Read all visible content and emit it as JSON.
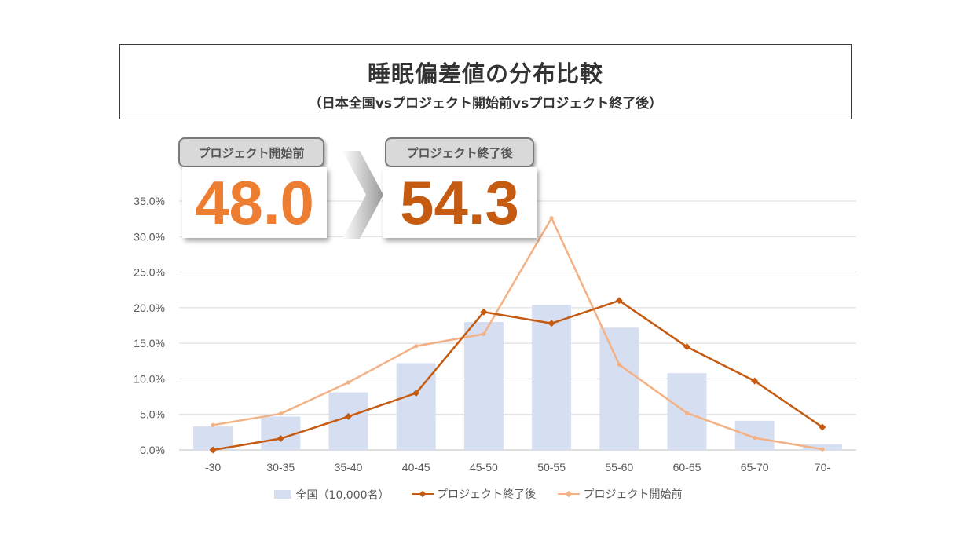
{
  "header": {
    "title": "睡眠偏差値の分布比較",
    "subtitle": "（日本全国vsプロジェクト開始前vsプロジェクト終了後）"
  },
  "badges": {
    "before": {
      "label": "プロジェクト開始前",
      "value": "48.0",
      "color": "#ed7d31"
    },
    "after": {
      "label": "プロジェクト終了後",
      "value": "54.3",
      "color": "#c55a11"
    }
  },
  "chart_data": {
    "type": "bar",
    "categories": [
      "-30",
      "30-35",
      "35-40",
      "40-45",
      "45-50",
      "50-55",
      "55-60",
      "60-65",
      "65-70",
      "70-"
    ],
    "ylim": [
      0,
      35
    ],
    "yticks": [
      "0.0%",
      "5.0%",
      "10.0%",
      "15.0%",
      "20.0%",
      "25.0%",
      "30.0%",
      "35.0%"
    ],
    "grid": true,
    "legend_position": "bottom",
    "series": [
      {
        "name": "全国（10,000名）",
        "kind": "bar",
        "color": "#d6dff1",
        "values": [
          3.3,
          4.7,
          8.1,
          12.2,
          18.0,
          20.4,
          17.2,
          10.8,
          4.1,
          0.8
        ]
      },
      {
        "name": "プロジェクト終了後",
        "kind": "line",
        "color": "#c55a11",
        "values": [
          0.0,
          1.6,
          4.7,
          8.0,
          19.4,
          17.8,
          21.0,
          14.5,
          9.7,
          3.2
        ]
      },
      {
        "name": "プロジェクト開始前",
        "kind": "line",
        "color": "#f4b183",
        "values": [
          3.5,
          5.1,
          9.5,
          14.6,
          16.3,
          32.6,
          12.0,
          5.2,
          1.7,
          0.1
        ]
      }
    ]
  }
}
